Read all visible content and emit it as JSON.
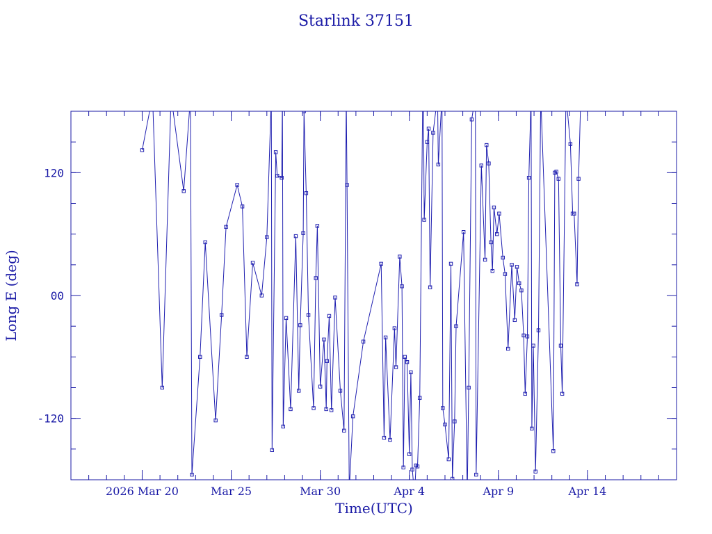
{
  "colors": {
    "axis": "#1a1aa6",
    "line": "#1f1fb0",
    "text": "#1a1aa6",
    "background": "#ffffff"
  },
  "chart_data": {
    "type": "line",
    "title": "Starlink 37151",
    "xlabel": "Time(UTC)",
    "ylabel": "Long E (deg)",
    "xlim": [
      "2026-03-16",
      "2026-04-19"
    ],
    "ylim": [
      -180,
      180
    ],
    "yticks": [
      {
        "value": 120,
        "label": "120"
      },
      {
        "value": 0,
        "label": "00"
      },
      {
        "value": -120,
        "label": "-120"
      }
    ],
    "xticks": [
      {
        "value": "2026-03-20",
        "label": "2026 Mar 20"
      },
      {
        "value": "2026-03-25",
        "label": "Mar 25"
      },
      {
        "value": "2026-03-30",
        "label": "Mar 30"
      },
      {
        "value": "2026-04-04",
        "label": "Apr  4"
      },
      {
        "value": "2026-04-09",
        "label": "Apr  9"
      },
      {
        "value": "2026-04-14",
        "label": "Apr 14"
      }
    ],
    "markers": "small squares",
    "wrap_longitude": true,
    "series": [
      {
        "points": [
          [
            "2026-03-20 00:00",
            142
          ],
          [
            "2026-03-20 14:00",
            195
          ],
          [
            "2026-03-21 03:00",
            -90
          ],
          [
            "2026-03-21 15:00",
            195
          ],
          [
            "2026-03-22 08:00",
            102
          ],
          [
            "2026-03-22 17:00",
            194
          ],
          [
            "2026-03-22 19:00",
            -175
          ],
          [
            "2026-03-23 06:00",
            -60
          ],
          [
            "2026-03-23 13:00",
            52
          ],
          [
            "2026-03-24 03:00",
            -122
          ],
          [
            "2026-03-24 11:00",
            -19
          ],
          [
            "2026-03-24 17:00",
            67
          ],
          [
            "2026-03-25 08:00",
            108
          ],
          [
            "2026-03-25 15:00",
            87
          ],
          [
            "2026-03-25 21:00",
            -60
          ],
          [
            "2026-03-26 05:00",
            32
          ],
          [
            "2026-03-26 17:00",
            0
          ],
          [
            "2026-03-27 00:00",
            57
          ],
          [
            "2026-03-27 06:00",
            195
          ],
          [
            "2026-03-27 07:00",
            -151
          ],
          [
            "2026-03-27 12:00",
            140
          ],
          [
            "2026-03-27 14:00",
            117
          ],
          [
            "2026-03-27 20:00",
            115
          ],
          [
            "2026-03-27 21:00",
            195
          ],
          [
            "2026-03-27 22:00",
            -128
          ],
          [
            "2026-03-28 02:00",
            -22
          ],
          [
            "2026-03-28 08:00",
            -111
          ],
          [
            "2026-03-28 15:00",
            58
          ],
          [
            "2026-03-28 19:00",
            -93
          ],
          [
            "2026-03-28 21:00",
            -29
          ],
          [
            "2026-03-29 01:00",
            61
          ],
          [
            "2026-03-29 02:00",
            180
          ],
          [
            "2026-03-29 05:00",
            100
          ],
          [
            "2026-03-29 08:00",
            -19
          ],
          [
            "2026-03-29 15:00",
            -110
          ],
          [
            "2026-03-29 18:00",
            17
          ],
          [
            "2026-03-29 20:00",
            68
          ],
          [
            "2026-03-30 00:00",
            -89
          ],
          [
            "2026-03-30 05:00",
            -43
          ],
          [
            "2026-03-30 08:00",
            -111
          ],
          [
            "2026-03-30 09:00",
            -64
          ],
          [
            "2026-03-30 12:00",
            -20
          ],
          [
            "2026-03-30 15:00",
            -112
          ],
          [
            "2026-03-30 20:00",
            -2
          ],
          [
            "2026-03-31 03:00",
            -93
          ],
          [
            "2026-03-31 08:00",
            -132
          ],
          [
            "2026-03-31 11:00",
            195
          ],
          [
            "2026-03-31 12:00",
            108
          ],
          [
            "2026-03-31 15:00",
            -190
          ],
          [
            "2026-03-31 20:00",
            -118
          ],
          [
            "2026-04-01 10:00",
            -45
          ],
          [
            "2026-04-02 10:00",
            31
          ],
          [
            "2026-04-02 14:00",
            -139
          ],
          [
            "2026-04-02 16:00",
            -41
          ],
          [
            "2026-04-02 22:00",
            -141
          ],
          [
            "2026-04-03 04:00",
            -32
          ],
          [
            "2026-04-03 06:00",
            -70
          ],
          [
            "2026-04-03 11:00",
            38
          ],
          [
            "2026-04-03 14:00",
            9
          ],
          [
            "2026-04-03 16:00",
            -168
          ],
          [
            "2026-04-03 18:00",
            -60
          ],
          [
            "2026-04-03 21:00",
            -65
          ],
          [
            "2026-04-04 00:00",
            -155
          ],
          [
            "2026-04-04 02:00",
            -75
          ],
          [
            "2026-04-04 04:00",
            -170
          ],
          [
            "2026-04-04 07:00",
            -195
          ],
          [
            "2026-04-04 09:00",
            -166
          ],
          [
            "2026-04-04 11:00",
            -167
          ],
          [
            "2026-04-04 14:00",
            -100
          ],
          [
            "2026-04-04 18:00",
            192
          ],
          [
            "2026-04-04 19:00",
            195
          ],
          [
            "2026-04-04 20:00",
            74
          ],
          [
            "2026-04-05 00:00",
            150
          ],
          [
            "2026-04-05 02:00",
            163
          ],
          [
            "2026-04-05 04:00",
            8
          ],
          [
            "2026-04-05 08:00",
            159
          ],
          [
            "2026-04-05 14:00",
            195
          ],
          [
            "2026-04-05 15:00",
            128
          ],
          [
            "2026-04-05 20:00",
            195
          ],
          [
            "2026-04-05 21:00",
            -110
          ],
          [
            "2026-04-06 00:00",
            -126
          ],
          [
            "2026-04-06 05:00",
            -160
          ],
          [
            "2026-04-06 08:00",
            31
          ],
          [
            "2026-04-06 10:00",
            -179
          ],
          [
            "2026-04-06 13:00",
            -123
          ],
          [
            "2026-04-06 15:00",
            -30
          ],
          [
            "2026-04-07 01:00",
            62
          ],
          [
            "2026-04-07 06:00",
            -195
          ],
          [
            "2026-04-07 08:00",
            -90
          ],
          [
            "2026-04-07 12:00",
            172
          ],
          [
            "2026-04-07 17:00",
            195
          ],
          [
            "2026-04-07 18:00",
            -175
          ],
          [
            "2026-04-08 01:00",
            127
          ],
          [
            "2026-04-08 06:00",
            35
          ],
          [
            "2026-04-08 08:00",
            147
          ],
          [
            "2026-04-08 11:00",
            129
          ],
          [
            "2026-04-08 14:00",
            52
          ],
          [
            "2026-04-08 16:00",
            24
          ],
          [
            "2026-04-08 18:00",
            86
          ],
          [
            "2026-04-08 22:00",
            60
          ],
          [
            "2026-04-09 01:00",
            80
          ],
          [
            "2026-04-09 06:00",
            37
          ],
          [
            "2026-04-09 09:00",
            21
          ],
          [
            "2026-04-09 13:00",
            -52
          ],
          [
            "2026-04-09 18:00",
            30
          ],
          [
            "2026-04-09 22:00",
            -24
          ],
          [
            "2026-04-10 01:00",
            28
          ],
          [
            "2026-04-10 04:00",
            12
          ],
          [
            "2026-04-10 07:00",
            5
          ],
          [
            "2026-04-10 10:00",
            -39
          ],
          [
            "2026-04-10 12:00",
            -96
          ],
          [
            "2026-04-10 15:00",
            -40
          ],
          [
            "2026-04-10 17:00",
            115
          ],
          [
            "2026-04-10 20:00",
            195
          ],
          [
            "2026-04-10 21:00",
            -130
          ],
          [
            "2026-04-10 23:00",
            -49
          ],
          [
            "2026-04-11 02:00",
            -172
          ],
          [
            "2026-04-11 06:00",
            -34
          ],
          [
            "2026-04-11 09:00",
            195
          ],
          [
            "2026-04-12 02:00",
            -152
          ],
          [
            "2026-04-12 04:00",
            120
          ],
          [
            "2026-04-12 06:00",
            121
          ],
          [
            "2026-04-12 09:00",
            114
          ],
          [
            "2026-04-12 12:00",
            -49
          ],
          [
            "2026-04-12 14:00",
            -96
          ],
          [
            "2026-04-12 19:00",
            195
          ],
          [
            "2026-04-13 01:00",
            148
          ],
          [
            "2026-04-13 04:00",
            80
          ],
          [
            "2026-04-13 06:00",
            80
          ],
          [
            "2026-04-13 10:00",
            11
          ],
          [
            "2026-04-13 12:00",
            114
          ],
          [
            "2026-04-13 15:00",
            195
          ]
        ]
      }
    ]
  }
}
